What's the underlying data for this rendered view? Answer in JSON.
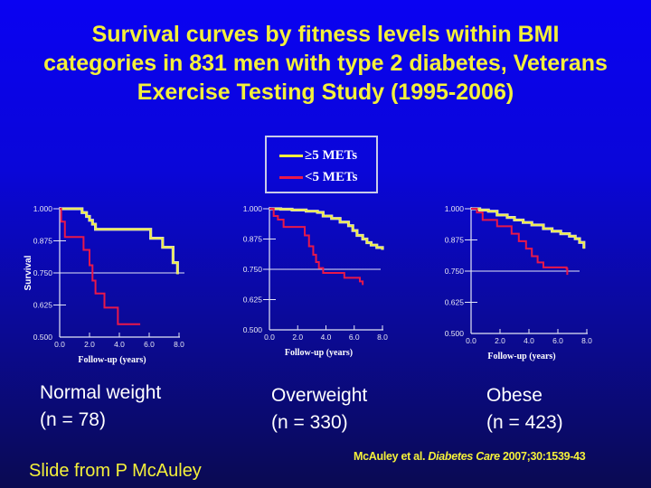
{
  "title": {
    "line1": "Survival curves by fitness levels within BMI",
    "line2": "categories in 831 men with type 2 diabetes, Veterans",
    "line3": "Exercise Testing Study (1995-2006)"
  },
  "legend": [
    {
      "label": "≥5 METs",
      "color": "#f2ee3c"
    },
    {
      "label": "<5 METs",
      "color": "#e8184a"
    }
  ],
  "colors": {
    "fit": "#f2ee3c",
    "unfit": "#e8184a",
    "axis": "#e4e6f6"
  },
  "chart_data": [
    {
      "type": "line",
      "name": "Normal weight",
      "xlabel": "Follow-up (years)",
      "ylabel": "Survival",
      "xlim": [
        0,
        8
      ],
      "ylim": [
        0.5,
        1.0
      ],
      "xticks": [
        "0.0",
        "2.0",
        "4.0",
        "6.0",
        "8.0"
      ],
      "yticks": [
        "0.500",
        "0.625",
        "0.750",
        "0.875",
        "1.000"
      ],
      "reference_line": 0.75,
      "series": [
        {
          "name": "≥5 METs",
          "step": true,
          "x": [
            0,
            1.5,
            1.8,
            2.0,
            2.2,
            2.4,
            6.1,
            6.9,
            7.6,
            7.9
          ],
          "y": [
            1.0,
            0.985,
            0.97,
            0.955,
            0.94,
            0.92,
            0.885,
            0.85,
            0.79,
            0.745
          ]
        },
        {
          "name": "<5 METs",
          "step": true,
          "x": [
            0,
            0.1,
            0.35,
            1.6,
            2.0,
            2.2,
            2.4,
            3.0,
            3.9,
            5.4
          ],
          "y": [
            1.0,
            0.95,
            0.89,
            0.84,
            0.78,
            0.72,
            0.67,
            0.615,
            0.55,
            0.55
          ]
        }
      ]
    },
    {
      "type": "line",
      "name": "Overweight",
      "xlabel": "Follow-up (years)",
      "ylabel": "",
      "xlim": [
        0,
        8
      ],
      "ylim": [
        0.5,
        1.0
      ],
      "xticks": [
        "0.0",
        "2.0",
        "4.0",
        "6.0",
        "8.0"
      ],
      "yticks": [
        "0.500",
        "0.625",
        "0.750",
        "0.875",
        "1.000"
      ],
      "reference_line": 0.75,
      "series": [
        {
          "name": "≥5 METs",
          "step": true,
          "x": [
            0,
            0.8,
            1.6,
            2.6,
            3.4,
            3.8,
            4.4,
            5.0,
            5.6,
            5.9,
            6.2,
            6.6,
            6.9,
            7.2,
            7.6,
            8.0
          ],
          "y": [
            1.0,
            0.998,
            0.995,
            0.99,
            0.985,
            0.97,
            0.96,
            0.945,
            0.93,
            0.91,
            0.89,
            0.875,
            0.86,
            0.85,
            0.84,
            0.83
          ]
        },
        {
          "name": "<5 METs",
          "step": true,
          "x": [
            0,
            0.3,
            0.6,
            1.0,
            2.5,
            2.8,
            3.1,
            3.3,
            3.5,
            3.8,
            5.3,
            6.4,
            6.6
          ],
          "y": [
            1.0,
            0.97,
            0.955,
            0.925,
            0.89,
            0.845,
            0.81,
            0.78,
            0.755,
            0.735,
            0.715,
            0.7,
            0.685
          ]
        }
      ]
    },
    {
      "type": "line",
      "name": "Obese",
      "xlabel": "Follow-up (years)",
      "ylabel": "",
      "xlim": [
        0,
        8
      ],
      "ylim": [
        0.5,
        1.0
      ],
      "xticks": [
        "0.0",
        "2.0",
        "4.0",
        "6.0",
        "8.0"
      ],
      "yticks": [
        "0.500",
        "0.625",
        "0.750",
        "0.875",
        "1.000"
      ],
      "reference_line": 0.75,
      "series": [
        {
          "name": "≥5 METs",
          "step": true,
          "x": [
            0,
            0.6,
            1.2,
            1.8,
            2.5,
            3.0,
            3.6,
            4.2,
            5.0,
            5.6,
            6.2,
            6.8,
            7.2,
            7.5,
            7.8
          ],
          "y": [
            1.0,
            0.995,
            0.99,
            0.975,
            0.965,
            0.955,
            0.945,
            0.935,
            0.92,
            0.91,
            0.9,
            0.89,
            0.88,
            0.865,
            0.84
          ]
        },
        {
          "name": "<5 METs",
          "step": true,
          "x": [
            0,
            0.4,
            0.8,
            1.8,
            2.8,
            3.3,
            3.8,
            4.2,
            4.6,
            5.0,
            6.6,
            6.65
          ],
          "y": [
            1.0,
            0.985,
            0.955,
            0.93,
            0.9,
            0.87,
            0.84,
            0.81,
            0.785,
            0.765,
            0.76,
            0.735
          ]
        }
      ]
    }
  ],
  "groups": [
    {
      "name": "Normal weight",
      "n": "(n = 78)"
    },
    {
      "name": "Overweight",
      "n": "(n = 330)"
    },
    {
      "name": "Obese",
      "n": "(n = 423)"
    }
  ],
  "citation": {
    "authors": "McAuley et al. ",
    "journal": "Diabetes Care",
    "ref": " 2007;30:1539-43"
  },
  "credit": "Slide from P McAuley"
}
